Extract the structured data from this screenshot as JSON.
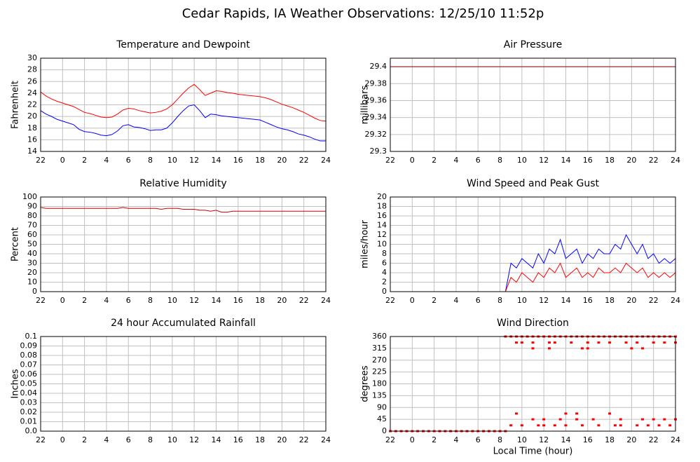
{
  "title": "Cedar Rapids, IA Weather Observations: 12/25/10 11:52p",
  "chart_data": [
    {
      "type": "line",
      "title": "Temperature and Dewpoint",
      "ylabel": "Fahrenheit",
      "x": [
        -2,
        -1.5,
        -1,
        -0.5,
        0,
        0.5,
        1,
        1.5,
        2,
        2.5,
        3,
        3.5,
        4,
        4.5,
        5,
        5.5,
        6,
        6.5,
        7,
        7.5,
        8,
        8.5,
        9,
        9.5,
        10,
        10.5,
        11,
        11.5,
        12,
        12.5,
        13,
        13.5,
        14,
        14.5,
        15,
        15.5,
        16,
        16.5,
        17,
        17.5,
        18,
        18.5,
        19,
        19.5,
        20,
        20.5,
        21,
        21.5,
        22,
        22.5,
        23,
        23.5,
        24
      ],
      "series": [
        {
          "color": "#ff0000",
          "values": [
            24.2,
            23.5,
            23.0,
            22.6,
            22.3,
            22.0,
            21.7,
            21.2,
            20.7,
            20.5,
            20.2,
            19.9,
            19.8,
            19.9,
            20.4,
            21.1,
            21.4,
            21.3,
            21.0,
            20.8,
            20.6,
            20.7,
            20.9,
            21.3,
            22.0,
            23.0,
            24.0,
            24.9,
            25.5,
            24.6,
            23.6,
            24.0,
            24.4,
            24.3,
            24.1,
            24.0,
            23.8,
            23.7,
            23.6,
            23.5,
            23.4,
            23.2,
            22.9,
            22.5,
            22.1,
            21.8,
            21.5,
            21.1,
            20.7,
            20.2,
            19.7,
            19.3,
            19.2
          ]
        },
        {
          "color": "#0000ff",
          "values": [
            21.0,
            20.4,
            20.0,
            19.5,
            19.2,
            18.9,
            18.6,
            17.8,
            17.4,
            17.3,
            17.1,
            16.8,
            16.7,
            16.9,
            17.5,
            18.4,
            18.6,
            18.2,
            18.1,
            17.9,
            17.6,
            17.7,
            17.7,
            18.0,
            18.9,
            20.0,
            21.0,
            21.8,
            22.0,
            21.0,
            19.8,
            20.4,
            20.3,
            20.1,
            20.0,
            19.9,
            19.8,
            19.7,
            19.6,
            19.5,
            19.4,
            19.0,
            18.6,
            18.2,
            17.9,
            17.7,
            17.4,
            17.0,
            16.8,
            16.5,
            16.1,
            15.8,
            15.8
          ]
        }
      ],
      "xlim": [
        -2,
        24
      ],
      "xticks": [
        {
          "value": -2,
          "label": "22"
        },
        0,
        2,
        4,
        6,
        8,
        10,
        12,
        14,
        16,
        18,
        20,
        22,
        24
      ],
      "ylim": [
        14,
        30
      ],
      "yticks": [
        14,
        16,
        18,
        20,
        22,
        24,
        26,
        28,
        30
      ],
      "grid": true
    },
    {
      "type": "line",
      "title": "Air Pressure",
      "ylabel": "millibars",
      "x": [
        -2,
        24
      ],
      "series": [
        {
          "color": "#8b0000",
          "values": [
            29.4,
            29.4
          ]
        }
      ],
      "xlim": [
        -2,
        24
      ],
      "xticks": [
        {
          "value": -2,
          "label": "22"
        },
        0,
        2,
        4,
        6,
        8,
        10,
        12,
        14,
        16,
        18,
        20,
        22,
        24
      ],
      "ylim": [
        29.3,
        29.41
      ],
      "yticks": [
        29.3,
        29.32,
        29.34,
        29.36,
        29.38,
        29.4
      ],
      "grid": true
    },
    {
      "type": "line",
      "title": "Relative Humidity",
      "ylabel": "Percent",
      "x": [
        -2,
        -1.5,
        -1,
        -0.5,
        0,
        0.5,
        1,
        1.5,
        2,
        2.5,
        3,
        3.5,
        4,
        4.5,
        5,
        5.5,
        6,
        6.5,
        7,
        7.5,
        8,
        8.5,
        9,
        9.5,
        10,
        10.5,
        11,
        11.5,
        12,
        12.5,
        13,
        13.5,
        14,
        14.5,
        15,
        15.5,
        16,
        16.5,
        17,
        17.5,
        18,
        18.5,
        19,
        19.5,
        20,
        20.5,
        21,
        21.5,
        22,
        22.5,
        23,
        23.5,
        24
      ],
      "series": [
        {
          "color": "#cc0000",
          "values": [
            89,
            88,
            88,
            88,
            88,
            88,
            88,
            88,
            88,
            88,
            88,
            88,
            88,
            88,
            88,
            89,
            88,
            88,
            88,
            88,
            88,
            88,
            87,
            88,
            88,
            88,
            87,
            87,
            87,
            86,
            86,
            85,
            86,
            84,
            84,
            85,
            85,
            85,
            85,
            85,
            85,
            85,
            85,
            85,
            85,
            85,
            85,
            85,
            85,
            85,
            85,
            85,
            85
          ]
        }
      ],
      "xlim": [
        -2,
        24
      ],
      "xticks": [
        {
          "value": -2,
          "label": "22"
        },
        0,
        2,
        4,
        6,
        8,
        10,
        12,
        14,
        16,
        18,
        20,
        22,
        24
      ],
      "ylim": [
        0,
        100
      ],
      "yticks": [
        0,
        10,
        20,
        30,
        40,
        50,
        60,
        70,
        80,
        90,
        100
      ],
      "grid": true
    },
    {
      "type": "line",
      "title": "Wind Speed and Peak Gust",
      "ylabel": "miles/hour",
      "x": [
        -2,
        -1.5,
        -1,
        -0.5,
        0,
        0.5,
        1,
        1.5,
        2,
        2.5,
        3,
        3.5,
        4,
        4.5,
        5,
        5.5,
        6,
        6.5,
        7,
        7.5,
        8,
        8.5,
        9,
        9.5,
        10,
        10.5,
        11,
        11.5,
        12,
        12.5,
        13,
        13.5,
        14,
        14.5,
        15,
        15.5,
        16,
        16.5,
        17,
        17.5,
        18,
        18.5,
        19,
        19.5,
        20,
        20.5,
        21,
        21.5,
        22,
        22.5,
        23,
        23.5,
        24
      ],
      "series": [
        {
          "color": "#0000ff",
          "values": [
            0,
            0,
            0,
            0,
            0,
            0,
            0,
            0,
            0,
            0,
            0,
            0,
            0,
            0,
            0,
            0,
            0,
            0,
            0,
            0,
            0,
            0,
            6,
            5,
            7,
            6,
            5,
            8,
            6,
            9,
            8,
            11,
            7,
            8,
            9,
            6,
            8,
            7,
            9,
            8,
            8,
            10,
            9,
            12,
            10,
            8,
            10,
            7,
            8,
            6,
            7,
            6,
            7
          ]
        },
        {
          "color": "#ff0000",
          "values": [
            0,
            0,
            0,
            0,
            0,
            0,
            0,
            0,
            0,
            0,
            0,
            0,
            0,
            0,
            0,
            0,
            0,
            0,
            0,
            0,
            0,
            0,
            3,
            2,
            4,
            3,
            2,
            4,
            3,
            5,
            4,
            6,
            3,
            4,
            5,
            3,
            4,
            3,
            5,
            4,
            4,
            5,
            4,
            6,
            5,
            4,
            5,
            3,
            4,
            3,
            4,
            3,
            4
          ]
        }
      ],
      "xlim": [
        -2,
        24
      ],
      "xticks": [
        {
          "value": -2,
          "label": "22"
        },
        0,
        2,
        4,
        6,
        8,
        10,
        12,
        14,
        16,
        18,
        20,
        22,
        24
      ],
      "ylim": [
        0,
        20
      ],
      "yticks": [
        0,
        2,
        4,
        6,
        8,
        10,
        12,
        14,
        16,
        18,
        20
      ],
      "grid": true
    },
    {
      "type": "line",
      "title": "24 hour Accumulated Rainfall",
      "ylabel": "Inches",
      "x": [
        -2,
        24
      ],
      "series": [
        {
          "color": "#ff0000",
          "values": [
            0,
            0
          ]
        }
      ],
      "xlim": [
        -2,
        24
      ],
      "xticks": [
        {
          "value": -2,
          "label": "22"
        },
        0,
        2,
        4,
        6,
        8,
        10,
        12,
        14,
        16,
        18,
        20,
        22,
        24
      ],
      "ylim": [
        0,
        0.1
      ],
      "yticks": [
        {
          "value": 0,
          "label": "0.0"
        },
        0.01,
        0.02,
        0.03,
        0.04,
        0.05,
        0.06,
        0.07,
        0.08,
        0.09,
        0.1
      ],
      "grid": true
    },
    {
      "type": "scatter",
      "title": "Wind Direction",
      "ylabel": "degrees",
      "xlabel": "Local Time (hour)",
      "color": "#ff0000",
      "x": [
        -2,
        -1.5,
        -1,
        -0.5,
        0,
        0.5,
        1,
        1.5,
        2,
        2.5,
        3,
        3.5,
        4,
        4.5,
        5,
        5.5,
        6,
        6.5,
        7,
        7.5,
        8,
        8.5,
        8.5,
        9,
        9.5,
        10,
        10.5,
        11,
        11.5,
        12,
        12.5,
        13,
        13.5,
        14,
        14.5,
        15,
        15.5,
        16,
        16.5,
        17,
        17.5,
        18,
        18.5,
        19,
        19.5,
        20,
        20.5,
        21,
        21.5,
        22,
        22.5,
        23,
        23.5,
        24,
        9.5,
        10,
        11,
        12.5,
        13,
        14.5,
        16,
        17,
        18,
        19.5,
        20.5,
        22,
        23,
        24,
        11,
        12.5,
        15.5,
        16,
        20,
        21,
        9,
        10,
        11.5,
        12,
        13,
        14,
        15.5,
        17,
        18.5,
        19,
        20.5,
        21.5,
        22.5,
        23.5,
        11,
        12,
        13.5,
        15,
        16.5,
        19,
        21,
        22,
        23,
        24,
        9.5,
        14,
        15,
        18
      ],
      "values": [
        0,
        0,
        0,
        0,
        0,
        0,
        0,
        0,
        0,
        0,
        0,
        0,
        0,
        0,
        0,
        0,
        0,
        0,
        0,
        0,
        0,
        0,
        360,
        360,
        360,
        360,
        360,
        360,
        360,
        360,
        360,
        360,
        360,
        360,
        360,
        360,
        360,
        360,
        360,
        360,
        360,
        360,
        360,
        360,
        360,
        360,
        360,
        360,
        360,
        360,
        360,
        360,
        360,
        360,
        337,
        337,
        337,
        337,
        337,
        337,
        337,
        337,
        337,
        337,
        337,
        337,
        337,
        337,
        315,
        315,
        315,
        315,
        315,
        315,
        22,
        22,
        22,
        22,
        22,
        22,
        22,
        22,
        22,
        22,
        22,
        22,
        22,
        22,
        45,
        45,
        45,
        45,
        45,
        45,
        45,
        45,
        45,
        45,
        67,
        67,
        67,
        67
      ],
      "xlim": [
        -2,
        24
      ],
      "xticks": [
        {
          "value": -2,
          "label": "22"
        },
        0,
        2,
        4,
        6,
        8,
        10,
        12,
        14,
        16,
        18,
        20,
        22,
        24
      ],
      "ylim": [
        0,
        360
      ],
      "yticks": [
        0,
        45,
        90,
        135,
        180,
        225,
        270,
        315,
        360
      ],
      "grid": true
    }
  ]
}
